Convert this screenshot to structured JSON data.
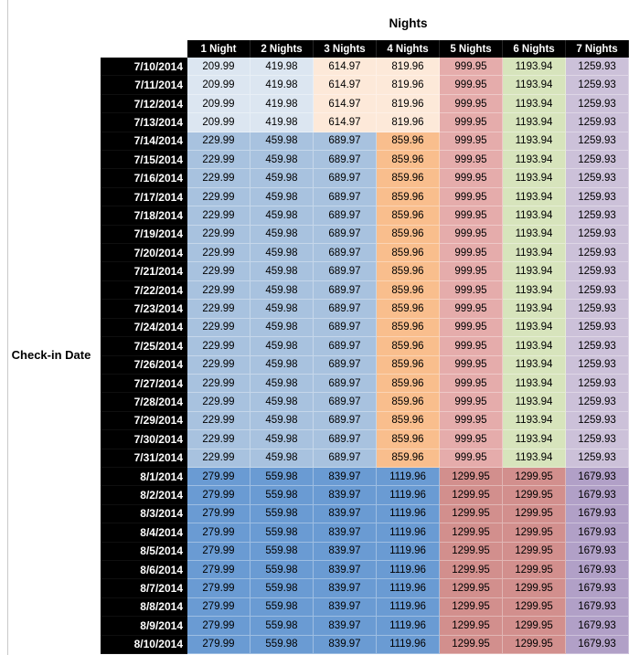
{
  "page": {
    "background": "#ffffff"
  },
  "chart_data": {
    "type": "heatmap",
    "title": "Nights",
    "row_axis_label": "Check-in Date",
    "columns": [
      "1 Night",
      "2 Nights",
      "3 Nights",
      "4 Nights",
      "5 Nights",
      "6 Nights",
      "7 Nights"
    ],
    "header_bg": "#000000",
    "header_text_color": "#ffffff",
    "row_header_bg": "#000000",
    "row_header_text_color": "#ffffff",
    "bands": [
      {
        "name": "early-july",
        "dates": [
          "7/10/2014",
          "7/11/2014",
          "7/12/2014",
          "7/13/2014"
        ],
        "values": [
          "209.99",
          "419.98",
          "614.97",
          "819.96",
          "999.95",
          "1193.94",
          "1259.93"
        ],
        "cell_colors": [
          "#DCE6F1",
          "#DCE6F1",
          "#FDE9D9",
          "#FDE9D9",
          "#E5ACAB",
          "#D7E4BC",
          "#CCC1D9"
        ]
      },
      {
        "name": "mid-late-july",
        "dates": [
          "7/14/2014",
          "7/15/2014",
          "7/16/2014",
          "7/17/2014",
          "7/18/2014",
          "7/19/2014",
          "7/20/2014",
          "7/21/2014",
          "7/22/2014",
          "7/23/2014",
          "7/24/2014",
          "7/25/2014",
          "7/26/2014",
          "7/27/2014",
          "7/28/2014",
          "7/29/2014",
          "7/30/2014",
          "7/31/2014"
        ],
        "values": [
          "229.99",
          "459.98",
          "689.97",
          "859.96",
          "999.95",
          "1193.94",
          "1259.93"
        ],
        "cell_colors": [
          "#A8C2DF",
          "#A8C2DF",
          "#A8C2DF",
          "#F9BE8D",
          "#E5ACAB",
          "#D7E4BC",
          "#CCC1D9"
        ]
      },
      {
        "name": "august",
        "dates": [
          "8/1/2014",
          "8/2/2014",
          "8/3/2014",
          "8/4/2014",
          "8/5/2014",
          "8/6/2014",
          "8/7/2014",
          "8/8/2014",
          "8/9/2014",
          "8/10/2014"
        ],
        "values": [
          "279.99",
          "559.98",
          "839.97",
          "1119.96",
          "1299.95",
          "1299.95",
          "1679.93"
        ],
        "cell_colors": [
          "#6A9BD3",
          "#6A9BD3",
          "#6A9BD3",
          "#6A9BD3",
          "#D28F8D",
          "#D28F8D",
          "#B1A0C7"
        ]
      }
    ]
  }
}
